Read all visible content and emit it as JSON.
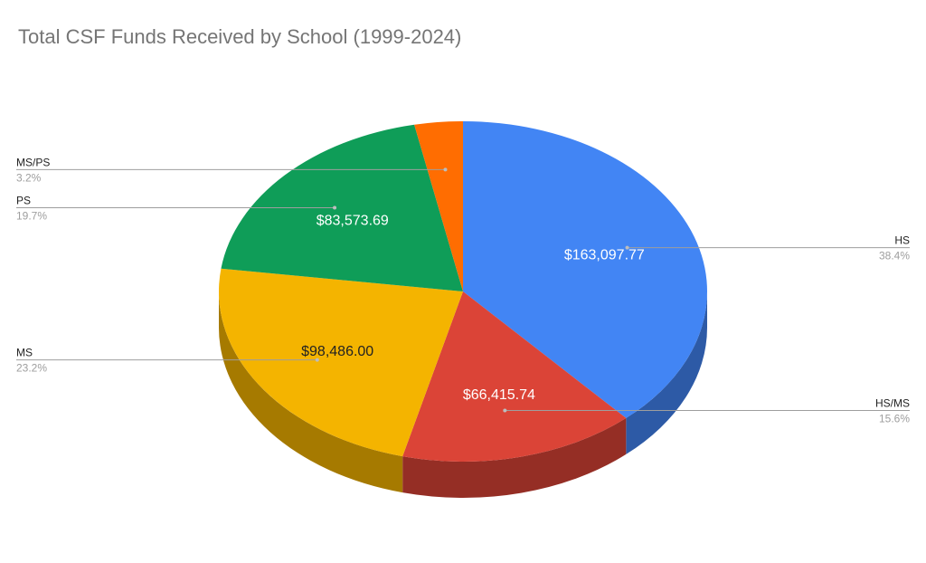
{
  "chart_data": {
    "type": "pie",
    "title": "Total CSF Funds Received by School (1999-2024)",
    "style": "3d",
    "legend": "labels-outside-with-leader-lines",
    "slices": [
      {
        "name": "HS",
        "value": 163097.77,
        "percent_label": "38.4%",
        "value_label": "$163,097.77",
        "color": "#4285f4",
        "label_color": "#ffffff",
        "side": "right"
      },
      {
        "name": "HS/MS",
        "value": 66415.74,
        "percent_label": "15.6%",
        "value_label": "$66,415.74",
        "color": "#db4437",
        "label_color": "#ffffff",
        "side": "right"
      },
      {
        "name": "MS",
        "value": 98486.0,
        "percent_label": "23.2%",
        "value_label": "$98,486.00",
        "color": "#f4b400",
        "label_color": "#222222",
        "side": "left"
      },
      {
        "name": "PS",
        "value": 83573.69,
        "percent_label": "19.7%",
        "value_label": "$83,573.69",
        "color": "#0f9d58",
        "label_color": "#ffffff",
        "side": "left"
      },
      {
        "name": "MS/PS",
        "value": 13600.0,
        "percent_label": "3.2%",
        "value_label": "",
        "color": "#ff6d01",
        "label_color": "#ffffff",
        "side": "left"
      }
    ]
  }
}
